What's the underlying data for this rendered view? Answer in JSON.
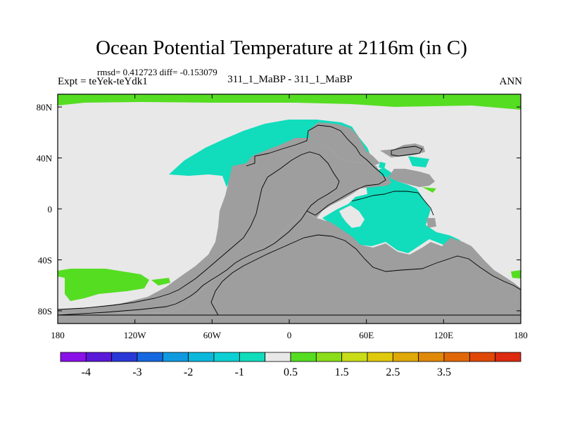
{
  "title": "Ocean Potential Temperature at 2116m (in C)",
  "stats_line": "rmsd= 0.412723 diff= -0.153079",
  "expt_line": "Expt = teYek-teYdk1",
  "subtitle": "311_1_MaBP - 311_1_MaBP",
  "season": "ANN",
  "colors": {
    "land": "#9e9e9e",
    "background_bin": "#e8e8e8",
    "green_bin": "#55dd22",
    "cyan_bin": "#11dcbc"
  },
  "chart_data": {
    "type": "heatmap",
    "projection": "cylindrical-equidistant",
    "x_ticks": [
      "180",
      "120W",
      "60W",
      "0",
      "60E",
      "120E",
      "180"
    ],
    "x_tick_values": [
      -180,
      -120,
      -60,
      0,
      60,
      120,
      180
    ],
    "y_ticks": [
      "80S",
      "40S",
      "0",
      "40N",
      "80N"
    ],
    "y_tick_values": [
      -80,
      -40,
      0,
      40,
      80
    ],
    "xlim": [
      -180,
      180
    ],
    "ylim": [
      -90,
      90
    ],
    "colorbar": {
      "colors": [
        "#8a11e8",
        "#5a18d8",
        "#2a38d8",
        "#1568e0",
        "#0f9ae0",
        "#0bb8dc",
        "#0cd0d4",
        "#11dcbc",
        "#e8e8e8",
        "#55dd22",
        "#8add18",
        "#c8dc18",
        "#e0c80c",
        "#e0a808",
        "#e08808",
        "#e06808",
        "#e04808",
        "#dd2a10"
      ],
      "labels": [
        "-4",
        "-3",
        "-2",
        "-1",
        "0.5",
        "1.5",
        "2.5",
        "3.5"
      ],
      "label_bin_edges": [
        1,
        3,
        5,
        7,
        9,
        11,
        13,
        15
      ]
    }
  }
}
